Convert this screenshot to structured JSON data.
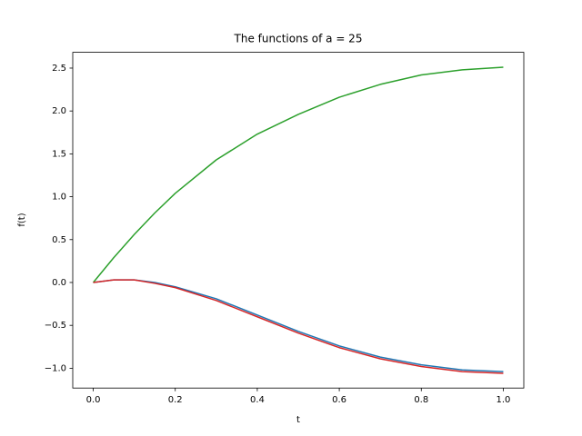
{
  "chart_data": {
    "type": "line",
    "title": "The functions of a = 25",
    "x_label": "t",
    "y_label": "f(t)",
    "x": [
      0,
      0.05,
      0.1,
      0.15,
      0.2,
      0.3,
      0.4,
      0.5,
      0.6,
      0.7,
      0.8,
      0.9,
      1.0
    ],
    "series": [
      {
        "color": "#1f77b4",
        "values": [
          0,
          0.03,
          0.03,
          0.0,
          -0.05,
          -0.19,
          -0.38,
          -0.57,
          -0.74,
          -0.87,
          -0.96,
          -1.02,
          -1.04
        ]
      },
      {
        "color": "#2ca02c",
        "values": [
          0,
          0.29,
          0.56,
          0.81,
          1.04,
          1.43,
          1.73,
          1.96,
          2.16,
          2.31,
          2.42,
          2.48,
          2.51
        ]
      },
      {
        "color": "#d62728",
        "values": [
          0,
          0.03,
          0.03,
          -0.01,
          -0.06,
          -0.21,
          -0.4,
          -0.59,
          -0.76,
          -0.89,
          -0.98,
          -1.04,
          -1.06
        ]
      }
    ],
    "xlim": [
      -0.05,
      1.05
    ],
    "xticks": [
      {
        "value": 0,
        "label": "0.0"
      },
      0.2,
      0.4,
      0.6,
      0.8,
      {
        "value": 1,
        "label": "1.0"
      }
    ],
    "ylim": [
      -1.231,
      2.684
    ],
    "yticks": [
      {
        "value": -1,
        "label": "−1.0"
      },
      {
        "value": -0.5,
        "label": "−0.5"
      },
      {
        "value": 0,
        "label": "0.0"
      },
      0.5,
      {
        "value": 1,
        "label": "1.0"
      },
      1.5,
      {
        "value": 2,
        "label": "2.0"
      },
      2.5
    ],
    "grid": false
  }
}
